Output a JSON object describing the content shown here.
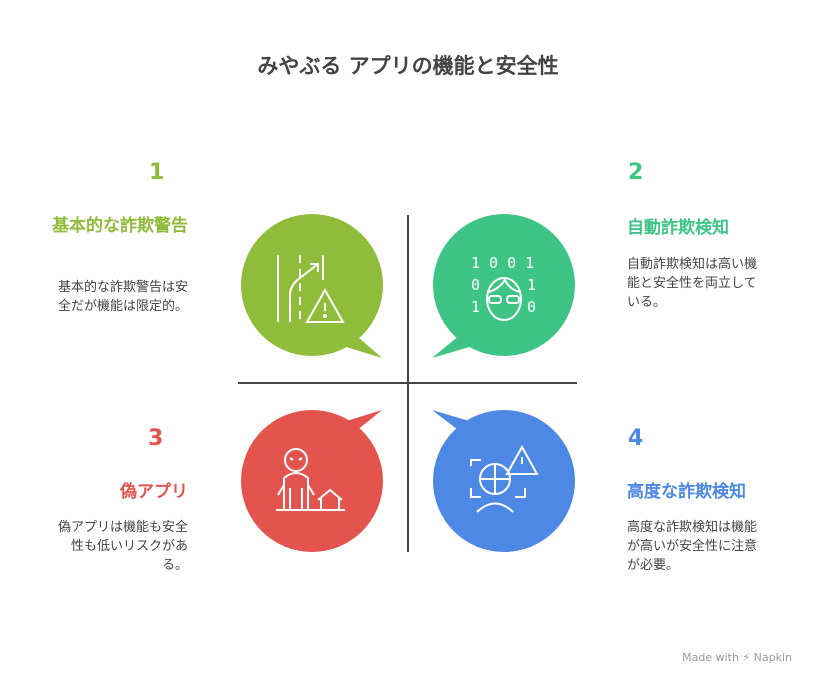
{
  "title": "みやぶる アプリの機能と安全性",
  "colors": {
    "q1": "#8fbc3a",
    "q2": "#3ec586",
    "q3": "#e4544f",
    "q4": "#4d88e4"
  },
  "quadrants": [
    {
      "number": "1",
      "heading": "基本的な詐欺警告",
      "description": "基本的な詐欺警告は安全だが機能は限定的。",
      "icon": "road-merge-warning-icon"
    },
    {
      "number": "2",
      "heading": "自動詐欺検知",
      "description": "自動詐欺検知は高い機能と安全性を両立している。",
      "icon": "binary-face-icon"
    },
    {
      "number": "3",
      "heading": "偽アプリ",
      "description": "偽アプリは機能も安全性も低いリスクがある。",
      "icon": "monster-house-icon"
    },
    {
      "number": "4",
      "heading": "高度な詐欺検知",
      "description": "高度な詐欺検知は機能が高いが安全性に注意が必要。",
      "icon": "face-scan-warning-icon"
    }
  ],
  "binary": [
    "1 0 0 1",
    "0",
    "1",
    "1",
    "0"
  ],
  "footer": "Made with ⚡ Napkin"
}
